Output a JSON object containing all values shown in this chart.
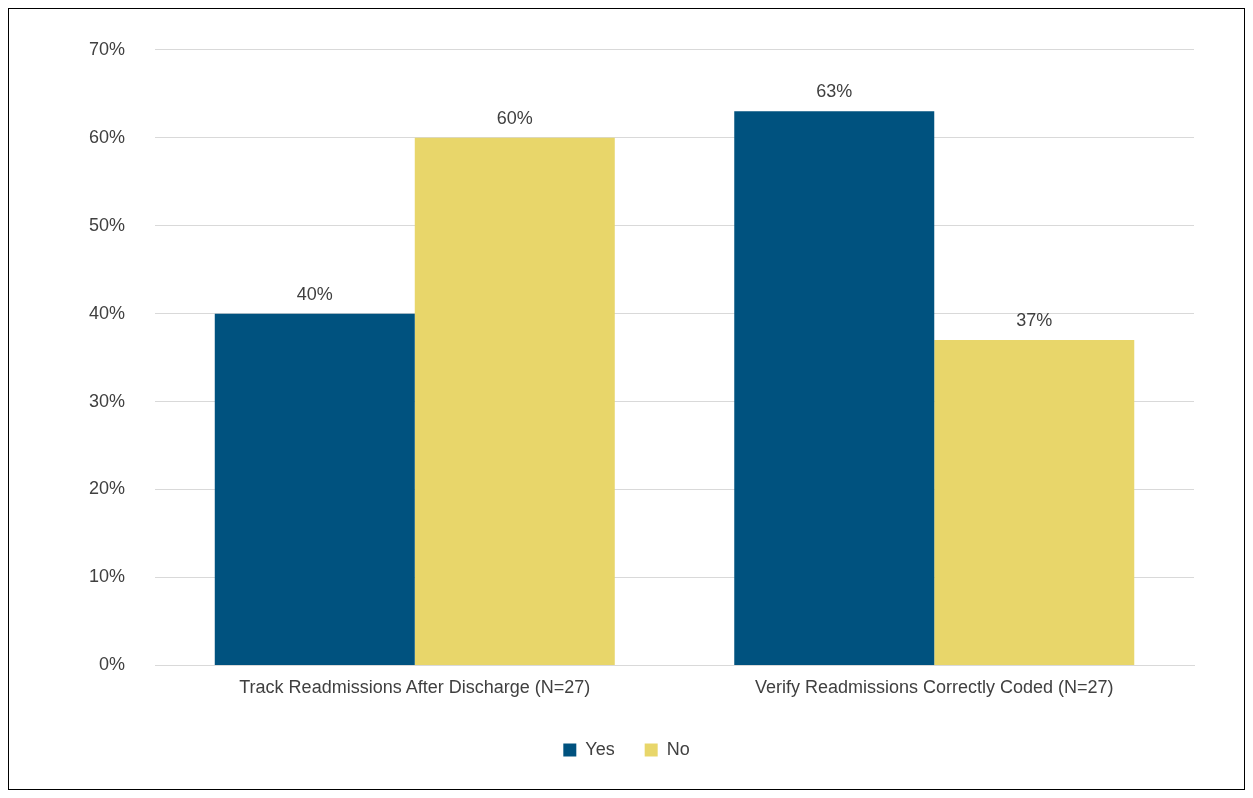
{
  "chart_data": {
    "type": "bar",
    "categories": [
      "Track Readmissions After Discharge (N=27)",
      "Verify Readmissions Correctly Coded (N=27)"
    ],
    "series": [
      {
        "name": "Yes",
        "color": "#00527f",
        "values": [
          40,
          63
        ],
        "value_labels": [
          "40%",
          "63%"
        ]
      },
      {
        "name": "No",
        "color": "#e8d66a",
        "values": [
          60,
          37
        ],
        "value_labels": [
          "60%",
          "37%"
        ]
      }
    ],
    "ylim": [
      0,
      70
    ],
    "yticks": [
      {
        "value": 0,
        "label": "0%"
      },
      {
        "value": 10,
        "label": "10%"
      },
      {
        "value": 20,
        "label": "20%"
      },
      {
        "value": 30,
        "label": "30%"
      },
      {
        "value": 40,
        "label": "40%"
      },
      {
        "value": 50,
        "label": "50%"
      },
      {
        "value": 60,
        "label": "60%"
      },
      {
        "value": 70,
        "label": "70%"
      }
    ],
    "grid": "y",
    "legend": "bottom"
  }
}
